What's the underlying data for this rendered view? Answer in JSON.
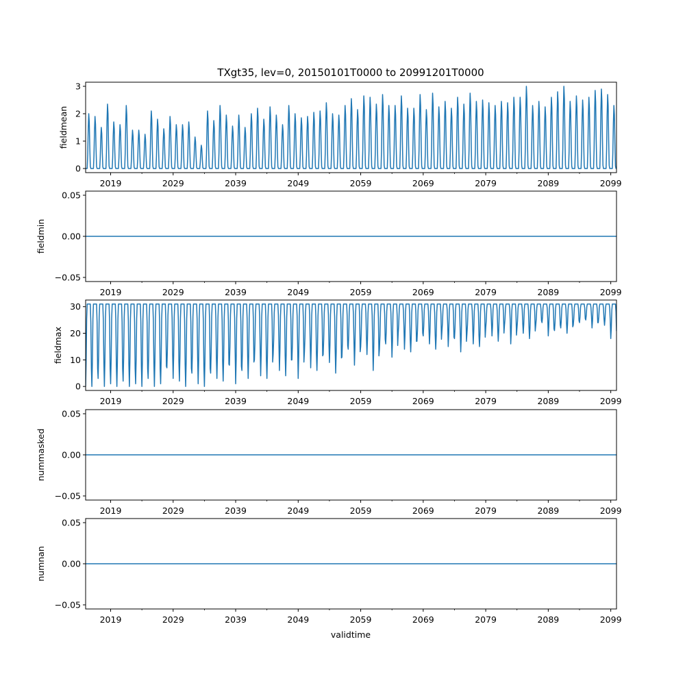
{
  "figure": {
    "title": "TXgt35, lev=0, 20150101T0000 to 20991201T0000",
    "xlabel": "validtime"
  },
  "colors": {
    "line": "#1f77b4",
    "axes": "#000000",
    "background": "#ffffff"
  },
  "chart_data": [
    {
      "type": "line",
      "name": "fieldmean-panel",
      "ylabel": "fieldmean",
      "xlim": [
        "2015-01-01",
        "2099-12-01"
      ],
      "ylim": [
        -0.15,
        3.15
      ],
      "yticks": [
        "0",
        "1",
        "2",
        "3"
      ],
      "xticks": [
        "2019",
        "2029",
        "2039",
        "2049",
        "2059",
        "2069",
        "2079",
        "2089",
        "2099"
      ],
      "x": {
        "start": "2015-01",
        "end": "2099-12",
        "frequency": "monthly"
      },
      "annual_peaks": [
        2.0,
        1.9,
        1.5,
        2.35,
        1.7,
        1.6,
        2.3,
        1.4,
        1.4,
        1.25,
        2.1,
        1.8,
        1.45,
        1.9,
        1.6,
        1.6,
        1.7,
        1.15,
        0.85,
        2.1,
        1.75,
        2.3,
        1.95,
        1.55,
        1.95,
        1.5,
        2.0,
        2.2,
        1.8,
        2.25,
        1.95,
        1.6,
        2.3,
        2.0,
        1.85,
        1.9,
        2.05,
        2.1,
        2.4,
        2.0,
        1.95,
        2.3,
        2.55,
        2.15,
        2.65,
        2.6,
        2.35,
        2.7,
        2.3,
        2.3,
        2.65,
        2.2,
        2.2,
        2.7,
        2.15,
        2.75,
        2.25,
        2.45,
        2.2,
        2.6,
        2.35,
        2.75,
        2.45,
        2.5,
        2.4,
        2.3,
        2.45,
        2.4,
        2.6,
        2.6,
        3.0,
        2.3,
        2.45,
        2.25,
        2.6,
        2.8,
        3.0,
        2.45,
        2.65,
        2.5,
        2.6,
        2.85,
        2.9,
        2.7,
        2.3
      ],
      "annual_min": 0
    },
    {
      "type": "line",
      "name": "fieldmin-panel",
      "ylabel": "fieldmin",
      "xlim": [
        "2015-01-01",
        "2099-12-01"
      ],
      "ylim": [
        -0.055,
        0.055
      ],
      "yticks": [
        "−0.05",
        "0.00",
        "0.05"
      ],
      "xticks": [
        "2019",
        "2029",
        "2039",
        "2049",
        "2059",
        "2069",
        "2079",
        "2089",
        "2099"
      ],
      "constant": 0
    },
    {
      "type": "line",
      "name": "fieldmax-panel",
      "ylabel": "fieldmax",
      "xlim": [
        "2015-01-01",
        "2099-12-01"
      ],
      "ylim": [
        -1.5,
        32.5
      ],
      "yticks": [
        "0",
        "10",
        "20",
        "30"
      ],
      "xticks": [
        "2019",
        "2029",
        "2039",
        "2049",
        "2059",
        "2069",
        "2079",
        "2089",
        "2099"
      ],
      "x": {
        "start": "2015-01",
        "end": "2099-12",
        "frequency": "monthly"
      },
      "annual_peak": 31,
      "annual_troughs": [
        0,
        0,
        3,
        0,
        1,
        0,
        2,
        0,
        1,
        0,
        3,
        0,
        1,
        7,
        3,
        2,
        0,
        5,
        1,
        0,
        5,
        3,
        2,
        8,
        1,
        6,
        3,
        10,
        4,
        3,
        12,
        6,
        4,
        10,
        3,
        13,
        7,
        6,
        12,
        9,
        5,
        11,
        14,
        8,
        15,
        12,
        6,
        14,
        16,
        11,
        20,
        14,
        13,
        17,
        19,
        16,
        14,
        21,
        15,
        18,
        13,
        20,
        16,
        15,
        22,
        19,
        17,
        23,
        16,
        22,
        20,
        18,
        23,
        24,
        19,
        21,
        22,
        20,
        23,
        24,
        25,
        22,
        24,
        23,
        18
      ]
    },
    {
      "type": "line",
      "name": "nummasked-panel",
      "ylabel": "nummasked",
      "xlim": [
        "2015-01-01",
        "2099-12-01"
      ],
      "ylim": [
        -0.055,
        0.055
      ],
      "yticks": [
        "−0.05",
        "0.00",
        "0.05"
      ],
      "xticks": [
        "2019",
        "2029",
        "2039",
        "2049",
        "2059",
        "2069",
        "2079",
        "2089",
        "2099"
      ],
      "constant": 0
    },
    {
      "type": "line",
      "name": "numnan-panel",
      "ylabel": "numnan",
      "xlim": [
        "2015-01-01",
        "2099-12-01"
      ],
      "ylim": [
        -0.055,
        0.055
      ],
      "yticks": [
        "−0.05",
        "0.00",
        "0.05"
      ],
      "xticks": [
        "2019",
        "2029",
        "2039",
        "2049",
        "2059",
        "2069",
        "2079",
        "2089",
        "2099"
      ],
      "constant": 0
    }
  ]
}
